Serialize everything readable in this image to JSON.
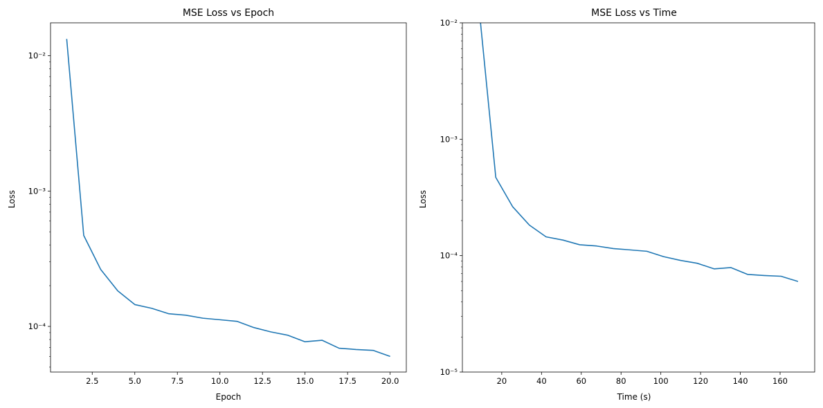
{
  "chart_data": [
    {
      "type": "line",
      "title": "MSE Loss vs Epoch",
      "xlabel": "Epoch",
      "ylabel": "Loss",
      "xlim": [
        0.05,
        20.95
      ],
      "ylim": [
        4.6e-05,
        0.0175
      ],
      "yscale": "log",
      "xticks": [
        2.5,
        5.0,
        7.5,
        10.0,
        12.5,
        15.0,
        17.5,
        20.0
      ],
      "xtick_labels": [
        "2.5",
        "5.0",
        "7.5",
        "10.0",
        "12.5",
        "15.0",
        "17.5",
        "20.0"
      ],
      "yticks": [
        0.0001,
        0.001,
        0.01
      ],
      "ytick_labels": [
        "10⁻⁴",
        "10⁻³",
        "10⁻²"
      ],
      "grid": false,
      "color": "#1f77b4",
      "series": [
        {
          "x": [
            1,
            2,
            3,
            4,
            5,
            6,
            7,
            8,
            9,
            10,
            11,
            12,
            13,
            14,
            15,
            16,
            17,
            18,
            19,
            20
          ],
          "values": [
            0.0133,
            0.00047,
            0.000263,
            0.000183,
            0.000145,
            0.000136,
            0.000124,
            0.000121,
            0.000115,
            0.000112,
            0.000109,
            9.8e-05,
            9.1e-05,
            8.6e-05,
            7.7e-05,
            7.9e-05,
            6.9e-05,
            6.75e-05,
            6.65e-05,
            6e-05
          ]
        }
      ]
    },
    {
      "type": "line",
      "title": "MSE Loss vs Time",
      "xlabel": "Time (s)",
      "ylabel": "Loss",
      "xlim": [
        0.2,
        177.4
      ],
      "ylim": [
        1e-05,
        0.01
      ],
      "yscale": "log",
      "xticks": [
        20,
        40,
        60,
        80,
        100,
        120,
        140,
        160
      ],
      "xtick_labels": [
        "20",
        "40",
        "60",
        "80",
        "100",
        "120",
        "140",
        "160"
      ],
      "yticks": [
        1e-05,
        0.0001,
        0.001,
        0.01
      ],
      "ytick_labels": [
        "10⁻⁵",
        "10⁻⁴",
        "10⁻³",
        "10⁻²"
      ],
      "grid": false,
      "color": "#1f77b4",
      "series": [
        {
          "x": [
            8.6,
            17.0,
            25.5,
            33.9,
            42.3,
            50.8,
            59.2,
            67.7,
            76.1,
            84.6,
            93.0,
            101.4,
            109.9,
            118.3,
            126.8,
            135.2,
            143.6,
            152.1,
            160.5,
            169.0
          ],
          "values": [
            0.0133,
            0.00047,
            0.000263,
            0.000183,
            0.000145,
            0.000136,
            0.000124,
            0.000121,
            0.000115,
            0.000112,
            0.000109,
            9.8e-05,
            9.1e-05,
            8.6e-05,
            7.7e-05,
            7.9e-05,
            6.9e-05,
            6.75e-05,
            6.65e-05,
            6e-05
          ]
        }
      ]
    }
  ]
}
